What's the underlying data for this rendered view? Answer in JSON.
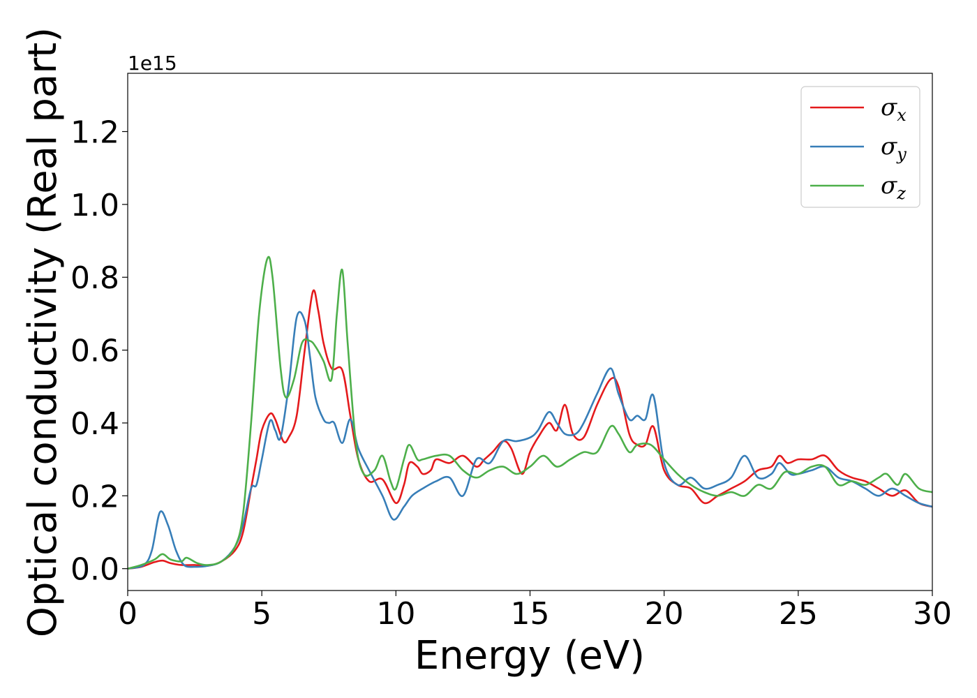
{
  "chart_data": {
    "type": "line",
    "xlabel": "Energy (eV)",
    "ylabel": "Optical conductivity (Real part)",
    "y_offset_text": "1e15",
    "xlim": [
      0,
      30
    ],
    "ylim": [
      -0.06,
      1.36
    ],
    "x_ticks": [
      0,
      5,
      10,
      15,
      20,
      25,
      30
    ],
    "x_tick_labels": [
      "0",
      "5",
      "10",
      "15",
      "20",
      "25",
      "30"
    ],
    "y_ticks": [
      0.0,
      0.2,
      0.4,
      0.6,
      0.8,
      1.0,
      1.2
    ],
    "y_tick_labels": [
      "0.0",
      "0.2",
      "0.4",
      "0.6",
      "0.8",
      "1.0",
      "1.2"
    ],
    "grid": false,
    "legend_position": "top-right",
    "series": [
      {
        "name": "σx",
        "symbol": "σ",
        "subscript": "x",
        "color": "#e41a1c",
        "points": [
          [
            0,
            0
          ],
          [
            0.5,
            0.005
          ],
          [
            1.0,
            0.018
          ],
          [
            1.3,
            0.022
          ],
          [
            1.6,
            0.015
          ],
          [
            2.0,
            0.01
          ],
          [
            2.5,
            0.01
          ],
          [
            3.0,
            0.008
          ],
          [
            3.5,
            0.02
          ],
          [
            4.0,
            0.05
          ],
          [
            4.3,
            0.1
          ],
          [
            4.6,
            0.22
          ],
          [
            4.8,
            0.3
          ],
          [
            5.0,
            0.38
          ],
          [
            5.3,
            0.425
          ],
          [
            5.5,
            0.41
          ],
          [
            5.8,
            0.35
          ],
          [
            6.0,
            0.36
          ],
          [
            6.3,
            0.42
          ],
          [
            6.6,
            0.6
          ],
          [
            6.9,
            0.76
          ],
          [
            7.1,
            0.71
          ],
          [
            7.3,
            0.62
          ],
          [
            7.6,
            0.55
          ],
          [
            8.0,
            0.545
          ],
          [
            8.3,
            0.42
          ],
          [
            8.6,
            0.3
          ],
          [
            9.0,
            0.24
          ],
          [
            9.5,
            0.245
          ],
          [
            10.0,
            0.18
          ],
          [
            10.3,
            0.23
          ],
          [
            10.5,
            0.29
          ],
          [
            10.8,
            0.28
          ],
          [
            11.0,
            0.26
          ],
          [
            11.3,
            0.27
          ],
          [
            11.5,
            0.3
          ],
          [
            12.0,
            0.29
          ],
          [
            12.5,
            0.31
          ],
          [
            13.0,
            0.28
          ],
          [
            13.3,
            0.3
          ],
          [
            13.6,
            0.32
          ],
          [
            14.0,
            0.35
          ],
          [
            14.3,
            0.33
          ],
          [
            14.7,
            0.26
          ],
          [
            15.0,
            0.32
          ],
          [
            15.3,
            0.36
          ],
          [
            15.7,
            0.4
          ],
          [
            16.0,
            0.38
          ],
          [
            16.3,
            0.45
          ],
          [
            16.6,
            0.37
          ],
          [
            17.0,
            0.36
          ],
          [
            17.5,
            0.45
          ],
          [
            18.0,
            0.52
          ],
          [
            18.3,
            0.5
          ],
          [
            18.7,
            0.37
          ],
          [
            19.0,
            0.34
          ],
          [
            19.3,
            0.34
          ],
          [
            19.6,
            0.39
          ],
          [
            20.0,
            0.27
          ],
          [
            20.5,
            0.23
          ],
          [
            21.0,
            0.22
          ],
          [
            21.5,
            0.18
          ],
          [
            22.0,
            0.2
          ],
          [
            22.5,
            0.22
          ],
          [
            23.0,
            0.24
          ],
          [
            23.5,
            0.27
          ],
          [
            24.0,
            0.28
          ],
          [
            24.3,
            0.31
          ],
          [
            24.6,
            0.29
          ],
          [
            25.0,
            0.3
          ],
          [
            25.5,
            0.3
          ],
          [
            26.0,
            0.31
          ],
          [
            26.5,
            0.27
          ],
          [
            27.0,
            0.25
          ],
          [
            27.5,
            0.24
          ],
          [
            28.0,
            0.22
          ],
          [
            28.5,
            0.2
          ],
          [
            29.0,
            0.215
          ],
          [
            29.5,
            0.18
          ],
          [
            30.0,
            0.17
          ]
        ]
      },
      {
        "name": "σy",
        "symbol": "σ",
        "subscript": "y",
        "color": "#377eb8",
        "points": [
          [
            0,
            0
          ],
          [
            0.6,
            0.01
          ],
          [
            0.9,
            0.05
          ],
          [
            1.2,
            0.155
          ],
          [
            1.5,
            0.12
          ],
          [
            1.8,
            0.05
          ],
          [
            2.1,
            0.01
          ],
          [
            2.5,
            0.005
          ],
          [
            3.0,
            0.008
          ],
          [
            3.5,
            0.02
          ],
          [
            4.0,
            0.06
          ],
          [
            4.3,
            0.12
          ],
          [
            4.6,
            0.22
          ],
          [
            4.8,
            0.23
          ],
          [
            5.0,
            0.3
          ],
          [
            5.3,
            0.405
          ],
          [
            5.5,
            0.38
          ],
          [
            5.7,
            0.36
          ],
          [
            6.0,
            0.5
          ],
          [
            6.3,
            0.69
          ],
          [
            6.6,
            0.68
          ],
          [
            6.8,
            0.58
          ],
          [
            7.0,
            0.47
          ],
          [
            7.3,
            0.41
          ],
          [
            7.5,
            0.4
          ],
          [
            7.7,
            0.4
          ],
          [
            8.0,
            0.345
          ],
          [
            8.3,
            0.41
          ],
          [
            8.6,
            0.33
          ],
          [
            9.0,
            0.27
          ],
          [
            9.5,
            0.2
          ],
          [
            9.9,
            0.135
          ],
          [
            10.3,
            0.17
          ],
          [
            10.6,
            0.2
          ],
          [
            11.0,
            0.22
          ],
          [
            11.5,
            0.24
          ],
          [
            12.0,
            0.25
          ],
          [
            12.5,
            0.2
          ],
          [
            13.0,
            0.3
          ],
          [
            13.5,
            0.29
          ],
          [
            14.0,
            0.35
          ],
          [
            14.5,
            0.35
          ],
          [
            15.0,
            0.36
          ],
          [
            15.3,
            0.38
          ],
          [
            15.7,
            0.43
          ],
          [
            16.0,
            0.4
          ],
          [
            16.3,
            0.37
          ],
          [
            16.7,
            0.37
          ],
          [
            17.0,
            0.4
          ],
          [
            17.5,
            0.48
          ],
          [
            18.0,
            0.55
          ],
          [
            18.3,
            0.48
          ],
          [
            18.7,
            0.41
          ],
          [
            19.0,
            0.42
          ],
          [
            19.3,
            0.41
          ],
          [
            19.6,
            0.475
          ],
          [
            20.0,
            0.29
          ],
          [
            20.5,
            0.23
          ],
          [
            21.0,
            0.25
          ],
          [
            21.5,
            0.22
          ],
          [
            22.0,
            0.23
          ],
          [
            22.5,
            0.25
          ],
          [
            23.0,
            0.31
          ],
          [
            23.5,
            0.25
          ],
          [
            24.0,
            0.26
          ],
          [
            24.3,
            0.29
          ],
          [
            24.7,
            0.26
          ],
          [
            25.0,
            0.26
          ],
          [
            25.5,
            0.27
          ],
          [
            26.0,
            0.28
          ],
          [
            26.5,
            0.25
          ],
          [
            27.0,
            0.24
          ],
          [
            27.5,
            0.22
          ],
          [
            28.0,
            0.2
          ],
          [
            28.5,
            0.22
          ],
          [
            29.0,
            0.2
          ],
          [
            29.5,
            0.18
          ],
          [
            30.0,
            0.17
          ]
        ]
      },
      {
        "name": "σz",
        "symbol": "σ",
        "subscript": "z",
        "color": "#4daf4a",
        "points": [
          [
            0,
            0
          ],
          [
            0.5,
            0.01
          ],
          [
            1.0,
            0.025
          ],
          [
            1.3,
            0.04
          ],
          [
            1.6,
            0.025
          ],
          [
            2.0,
            0.02
          ],
          [
            2.2,
            0.03
          ],
          [
            2.6,
            0.015
          ],
          [
            3.0,
            0.01
          ],
          [
            3.5,
            0.02
          ],
          [
            4.0,
            0.06
          ],
          [
            4.3,
            0.15
          ],
          [
            4.6,
            0.4
          ],
          [
            4.9,
            0.7
          ],
          [
            5.2,
            0.85
          ],
          [
            5.4,
            0.8
          ],
          [
            5.7,
            0.55
          ],
          [
            5.9,
            0.47
          ],
          [
            6.2,
            0.52
          ],
          [
            6.5,
            0.62
          ],
          [
            6.8,
            0.625
          ],
          [
            7.0,
            0.61
          ],
          [
            7.3,
            0.57
          ],
          [
            7.6,
            0.52
          ],
          [
            7.8,
            0.7
          ],
          [
            8.0,
            0.82
          ],
          [
            8.2,
            0.62
          ],
          [
            8.5,
            0.35
          ],
          [
            8.8,
            0.26
          ],
          [
            9.2,
            0.27
          ],
          [
            9.5,
            0.31
          ],
          [
            9.8,
            0.24
          ],
          [
            10.0,
            0.22
          ],
          [
            10.3,
            0.3
          ],
          [
            10.5,
            0.34
          ],
          [
            10.8,
            0.3
          ],
          [
            11.0,
            0.3
          ],
          [
            11.5,
            0.31
          ],
          [
            12.0,
            0.31
          ],
          [
            12.5,
            0.27
          ],
          [
            13.0,
            0.25
          ],
          [
            13.5,
            0.27
          ],
          [
            14.0,
            0.28
          ],
          [
            14.5,
            0.26
          ],
          [
            15.0,
            0.28
          ],
          [
            15.5,
            0.31
          ],
          [
            16.0,
            0.28
          ],
          [
            16.5,
            0.3
          ],
          [
            17.0,
            0.32
          ],
          [
            17.5,
            0.32
          ],
          [
            18.0,
            0.39
          ],
          [
            18.3,
            0.37
          ],
          [
            18.7,
            0.32
          ],
          [
            19.0,
            0.34
          ],
          [
            19.5,
            0.34
          ],
          [
            20.0,
            0.3
          ],
          [
            20.5,
            0.26
          ],
          [
            21.0,
            0.23
          ],
          [
            21.5,
            0.21
          ],
          [
            22.0,
            0.2
          ],
          [
            22.5,
            0.21
          ],
          [
            23.0,
            0.2
          ],
          [
            23.5,
            0.23
          ],
          [
            24.0,
            0.22
          ],
          [
            24.5,
            0.265
          ],
          [
            25.0,
            0.26
          ],
          [
            25.5,
            0.28
          ],
          [
            26.0,
            0.28
          ],
          [
            26.5,
            0.23
          ],
          [
            27.0,
            0.24
          ],
          [
            27.5,
            0.23
          ],
          [
            28.0,
            0.25
          ],
          [
            28.3,
            0.26
          ],
          [
            28.7,
            0.23
          ],
          [
            29.0,
            0.26
          ],
          [
            29.5,
            0.22
          ],
          [
            30.0,
            0.21
          ]
        ]
      }
    ]
  }
}
